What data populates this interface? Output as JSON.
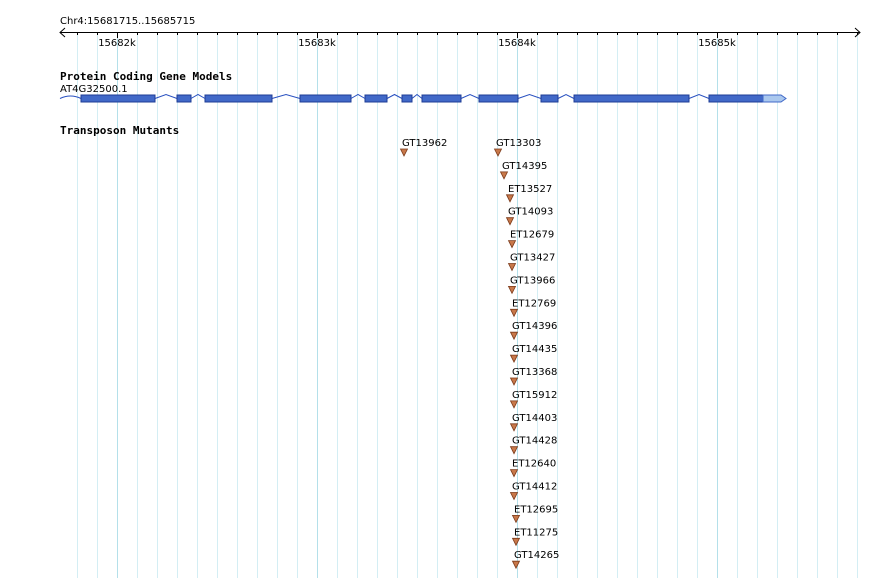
{
  "region_label": "Chr4:15681715..15685715",
  "ruler": {
    "start": 15681715,
    "end": 15685715,
    "ticks": [
      {
        "value": 15682000,
        "label": "15682k"
      },
      {
        "value": 15683000,
        "label": "15683k"
      },
      {
        "value": 15684000,
        "label": "15684k"
      },
      {
        "value": 15685000,
        "label": "15685k"
      }
    ]
  },
  "tracks": {
    "gene_models": {
      "title": "Protein Coding Gene Models",
      "gene_name": "AT4G32500.1",
      "exon_color": "#4169c8",
      "utr_color": "#aac8ee",
      "intron_color": "#2850c0",
      "exons": [
        [
          15681820,
          15682190
        ],
        [
          15682300,
          15682370
        ],
        [
          15682440,
          15682775
        ],
        [
          15682915,
          15683170
        ],
        [
          15683240,
          15683350
        ],
        [
          15683425,
          15683475
        ],
        [
          15683525,
          15683720
        ],
        [
          15683810,
          15684005
        ],
        [
          15684120,
          15684205
        ],
        [
          15684285,
          15684860
        ],
        [
          15684960,
          15685230
        ]
      ],
      "utr": [
        15685230,
        15685345
      ]
    },
    "mutants": {
      "title": "Transposon Mutants",
      "marker_color": "#c8784a",
      "items": [
        {
          "name": "GT13962",
          "pos": 15683435
        },
        {
          "name": "GT13303",
          "pos": 15683905
        },
        {
          "name": "GT14395",
          "pos": 15683935
        },
        {
          "name": "ET13527",
          "pos": 15683965
        },
        {
          "name": "GT14093",
          "pos": 15683965
        },
        {
          "name": "ET12679",
          "pos": 15683975
        },
        {
          "name": "GT13427",
          "pos": 15683975
        },
        {
          "name": "GT13966",
          "pos": 15683975
        },
        {
          "name": "ET12769",
          "pos": 15683985
        },
        {
          "name": "GT14396",
          "pos": 15683985
        },
        {
          "name": "GT14435",
          "pos": 15683985
        },
        {
          "name": "GT13368",
          "pos": 15683985
        },
        {
          "name": "GT15912",
          "pos": 15683985
        },
        {
          "name": "GT14403",
          "pos": 15683985
        },
        {
          "name": "GT14428",
          "pos": 15683985
        },
        {
          "name": "ET12640",
          "pos": 15683985
        },
        {
          "name": "GT14412",
          "pos": 15683985
        },
        {
          "name": "ET12695",
          "pos": 15683995
        },
        {
          "name": "ET11275",
          "pos": 15683995
        },
        {
          "name": "GT14265",
          "pos": 15683995
        }
      ]
    }
  },
  "colors": {
    "grid_major": "#b4e0ea",
    "grid_minor": "#d4eef4",
    "axis": "#000000"
  }
}
